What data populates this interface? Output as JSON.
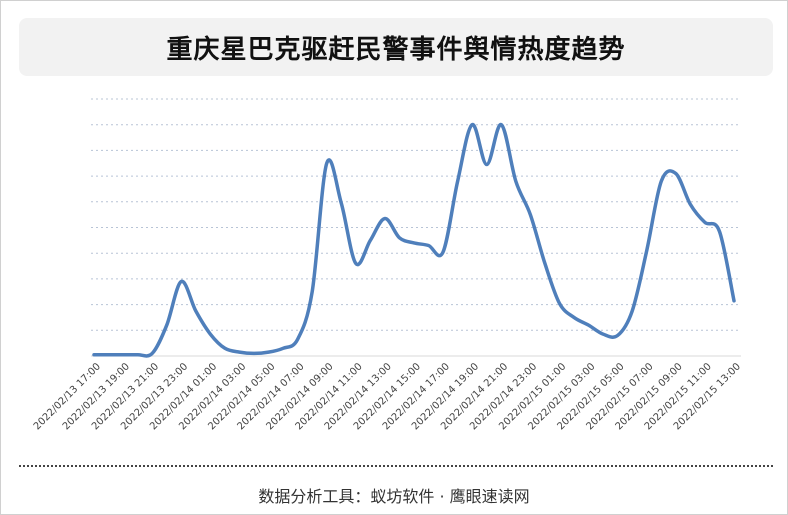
{
  "chart_data": {
    "type": "line",
    "title": "重庆星巴克驱赶民警事件舆情热度趋势",
    "footer": "数据分析工具：蚁坊软件 · 鹰眼速读网",
    "categories": [
      "2022/02/13 17:00",
      null,
      "2022/02/13 19:00",
      null,
      "2022/02/13 21:00",
      null,
      "2022/02/13 23:00",
      null,
      "2022/02/14 01:00",
      null,
      "2022/02/14 03:00",
      null,
      "2022/02/14 05:00",
      null,
      "2022/02/14 07:00",
      null,
      "2022/02/14 09:00",
      null,
      "2022/02/14 11:00",
      null,
      "2022/02/14 13:00",
      null,
      "2022/02/14 15:00",
      null,
      "2022/02/14 17:00",
      null,
      "2022/02/14 19:00",
      null,
      "2022/02/14 21:00",
      null,
      "2022/02/14 23:00",
      null,
      "2022/02/15 01:00",
      null,
      "2022/02/15 03:00",
      null,
      "2022/02/15 05:00",
      null,
      "2022/02/15 07:00",
      null,
      "2022/02/15 09:00",
      null,
      "2022/02/15 11:00",
      null,
      "2022/02/15 13:00"
    ],
    "series": [
      {
        "color": "#4f7fbb",
        "values": [
          0.05,
          0.05,
          0.05,
          0.05,
          0.1,
          1.2,
          2.9,
          1.75,
          0.85,
          0.3,
          0.15,
          0.1,
          0.15,
          0.3,
          0.65,
          2.5,
          7.5,
          5.95,
          3.6,
          4.5,
          5.35,
          4.6,
          4.4,
          4.3,
          4.05,
          6.8,
          9.0,
          7.45,
          9.0,
          6.8,
          5.5,
          3.6,
          2.05,
          1.5,
          1.2,
          0.85,
          0.8,
          1.75,
          4.1,
          6.8,
          7.1,
          5.9,
          5.2,
          4.85,
          2.15
        ]
      }
    ],
    "ylim": [
      0,
      10
    ],
    "ygrid": [
      1,
      2,
      3,
      4,
      5,
      6,
      7,
      8,
      9,
      10
    ],
    "grid": true
  }
}
